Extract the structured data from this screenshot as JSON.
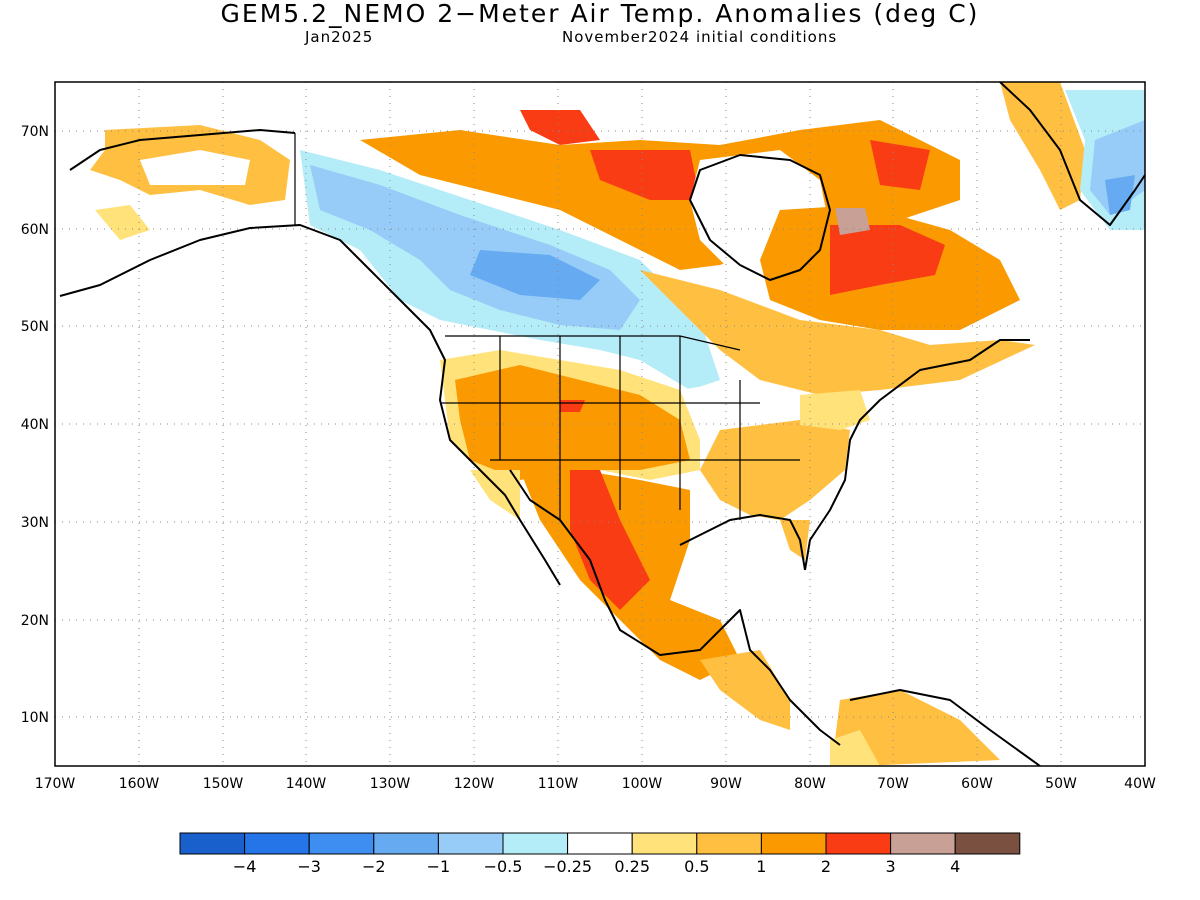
{
  "title": "GEM5.2_NEMO 2−Meter Air Temp. Anomalies (deg C)",
  "subtitle_left": "Jan2025",
  "subtitle_right": "November2024 initial conditions",
  "map": {
    "lon_range": [
      -170,
      -40
    ],
    "lat_range": [
      5,
      75
    ],
    "lon_ticks": [
      "170W",
      "160W",
      "150W",
      "140W",
      "130W",
      "120W",
      "110W",
      "100W",
      "90W",
      "80W",
      "70W",
      "60W",
      "50W",
      "40W"
    ],
    "lat_ticks": [
      "10N",
      "20N",
      "30N",
      "40N",
      "50N",
      "60N",
      "70N"
    ]
  },
  "legend": {
    "labels": [
      "−4",
      "−3",
      "−2",
      "−1",
      "−0.5",
      "−0.25",
      "0.25",
      "0.5",
      "1",
      "2",
      "3",
      "4"
    ],
    "colors": [
      "#1a60cc",
      "#2575e8",
      "#3d8ef0",
      "#66aaf2",
      "#96ccf7",
      "#b4ecf8",
      "#ffffff",
      "#ffe27a",
      "#ffbf40",
      "#fa9a00",
      "#fa3c14",
      "#c8a096",
      "#7a5040"
    ]
  }
}
